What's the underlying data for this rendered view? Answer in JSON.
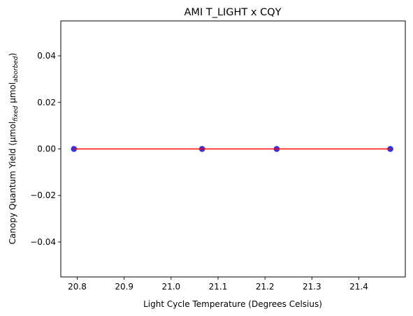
{
  "chart_data": {
    "type": "scatter",
    "title": "AMI T_LIGHT x CQY",
    "xlabel": "Light Cycle Temperature (Degrees Celsius)",
    "ylabel": {
      "prefix": "Canopy Quantum Yield (μmol",
      "sub1": "fixed",
      "middle": " μmol",
      "sub2": "aborbed",
      "suffix": ")"
    },
    "xlim": [
      20.765,
      21.499
    ],
    "ylim": [
      -0.055,
      0.055
    ],
    "xticks": [
      20.8,
      20.9,
      21.0,
      21.1,
      21.2,
      21.3,
      21.4
    ],
    "xtick_labels": [
      "20.8",
      "20.9",
      "21.0",
      "21.1",
      "21.2",
      "21.3",
      "21.4"
    ],
    "yticks": [
      -0.04,
      -0.02,
      0.0,
      0.02,
      0.04
    ],
    "ytick_labels": [
      "−0.04",
      "−0.02",
      "0.00",
      "0.02",
      "0.04"
    ],
    "grid": false,
    "series": [
      {
        "kind": "scatter",
        "color": "#0000cc",
        "x": [
          20.793,
          20.793,
          21.066,
          21.066,
          21.225,
          21.225,
          21.467,
          21.467
        ],
        "y": [
          0,
          0,
          0,
          0,
          0,
          0,
          0,
          0
        ]
      },
      {
        "kind": "line",
        "color": "#ff0000",
        "x": [
          20.793,
          21.467
        ],
        "y": [
          0,
          0
        ]
      }
    ]
  }
}
